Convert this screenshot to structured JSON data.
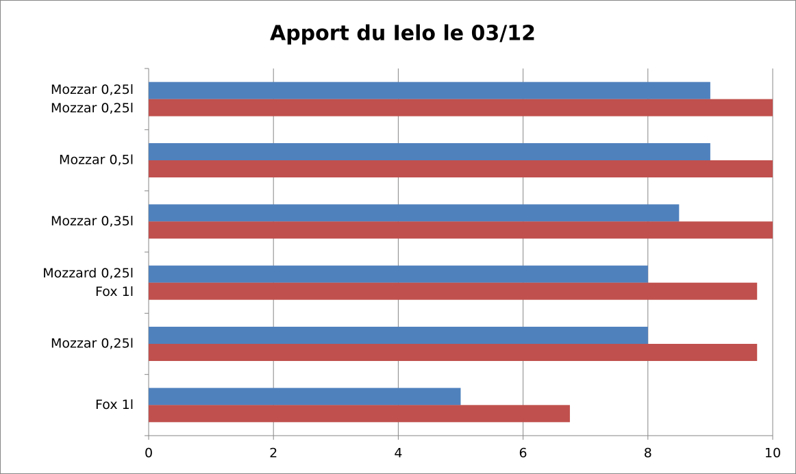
{
  "chart_data": {
    "type": "bar",
    "orientation": "horizontal",
    "title": "Apport du Ielo le 03/12",
    "categories": [
      "Mozzar 0,25l\nMozzar 0,25l",
      "Mozzar 0,5l",
      "Mozzar 0,35l",
      "Mozzard 0,25l\nFox 1l",
      "Mozzar 0,25l",
      "Fox 1l"
    ],
    "series": [
      {
        "color": "#4f81bd",
        "values": [
          9,
          9,
          8.5,
          8,
          8,
          5
        ]
      },
      {
        "color": "#c0504d",
        "values": [
          10,
          10,
          10,
          9.75,
          9.75,
          6.75
        ]
      }
    ],
    "xlim": [
      0,
      10
    ],
    "xticks": [
      0,
      2,
      4,
      6,
      8,
      10
    ],
    "grid": true
  }
}
